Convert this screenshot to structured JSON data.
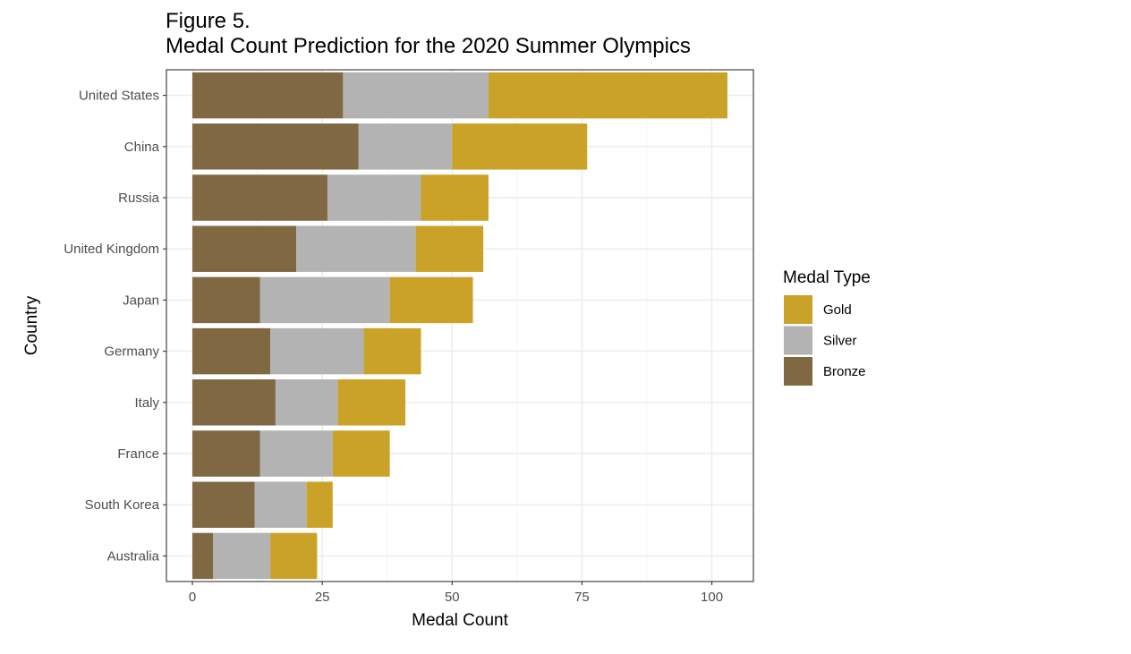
{
  "chart_data": {
    "type": "bar",
    "orientation": "horizontal",
    "stacked": true,
    "title_lines": [
      "Figure 5.",
      "Medal Count Prediction for the 2020 Summer Olympics"
    ],
    "xlabel": "Medal Count",
    "ylabel": "Country",
    "xlim": [
      -5,
      108
    ],
    "x_ticks": [
      0,
      25,
      50,
      75,
      100
    ],
    "x_tick_labels": [
      "0",
      "25",
      "50",
      "75",
      "100"
    ],
    "grid": true,
    "legend_position": "right",
    "legend_title": "Medal Type",
    "categories": [
      "United States",
      "China",
      "Russia",
      "United Kingdom",
      "Japan",
      "Germany",
      "Italy",
      "France",
      "South Korea",
      "Australia"
    ],
    "series": [
      {
        "name": "Bronze",
        "color": "#7f6842",
        "values": [
          29,
          32,
          26,
          20,
          13,
          15,
          16,
          13,
          12,
          4
        ]
      },
      {
        "name": "Silver",
        "color": "#b3b3b3",
        "values": [
          28,
          18,
          18,
          23,
          25,
          18,
          12,
          14,
          10,
          11
        ]
      },
      {
        "name": "Gold",
        "color": "#c9a227",
        "values": [
          46,
          26,
          13,
          13,
          16,
          11,
          13,
          11,
          5,
          9
        ]
      }
    ],
    "legend_order": [
      "Gold",
      "Silver",
      "Bronze"
    ]
  }
}
